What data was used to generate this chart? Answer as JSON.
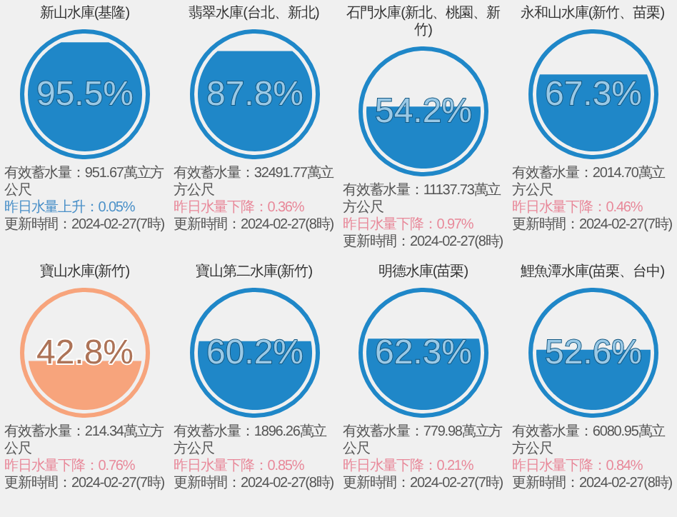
{
  "chart_data": [
    {
      "type": "other",
      "title": "新山水庫(基隆)",
      "series": [
        {
          "values": [
            95.5
          ],
          "color": "#1f87c8",
          "value_labels": [
            "95.5%"
          ]
        }
      ],
      "annotations": [
        "有效蓄水量：951.67萬立方公尺",
        "昨日水量上升：0.05%",
        "更新時間：2024-02-27(7時)"
      ]
    },
    {
      "type": "other",
      "title": "翡翠水庫(台北、新北)",
      "series": [
        {
          "values": [
            87.8
          ],
          "color": "#1f87c8",
          "value_labels": [
            "87.8%"
          ]
        }
      ],
      "annotations": [
        "有效蓄水量：32491.77萬立方公尺",
        "昨日水量下降：0.36%",
        "更新時間：2024-02-27(8時)"
      ]
    },
    {
      "type": "other",
      "title": "石門水庫(新北、桃園、新竹)",
      "series": [
        {
          "values": [
            54.2
          ],
          "color": "#1f87c8",
          "value_labels": [
            "54.2%"
          ]
        }
      ],
      "annotations": [
        "有效蓄水量：11137.73萬立方公尺",
        "昨日水量下降：0.97%",
        "更新時間：2024-02-27(8時)"
      ]
    },
    {
      "type": "other",
      "title": "永和山水庫(新竹、苗栗)",
      "series": [
        {
          "values": [
            67.3
          ],
          "color": "#1f87c8",
          "value_labels": [
            "67.3%"
          ]
        }
      ],
      "annotations": [
        "有效蓄水量：2014.70萬立方公尺",
        "昨日水量下降：0.46%",
        "更新時間：2024-02-27(7時)"
      ]
    },
    {
      "type": "other",
      "title": "寶山水庫(新竹)",
      "series": [
        {
          "values": [
            42.8
          ],
          "color": "#f7a47c",
          "value_labels": [
            "42.8%"
          ]
        }
      ],
      "annotations": [
        "有效蓄水量：214.34萬立方公尺",
        "昨日水量下降：0.76%",
        "更新時間：2024-02-27(7時)"
      ]
    },
    {
      "type": "other",
      "title": "寶山第二水庫(新竹)",
      "series": [
        {
          "values": [
            60.2
          ],
          "color": "#1f87c8",
          "value_labels": [
            "60.2%"
          ]
        }
      ],
      "annotations": [
        "有效蓄水量：1896.26萬立方公尺",
        "昨日水量下降：0.85%",
        "更新時間：2024-02-27(8時)"
      ]
    },
    {
      "type": "other",
      "title": "明德水庫(苗栗)",
      "series": [
        {
          "values": [
            62.3
          ],
          "color": "#1f87c8",
          "value_labels": [
            "62.3%"
          ]
        }
      ],
      "annotations": [
        "有效蓄水量：779.98萬立方公尺",
        "昨日水量下降：0.21%",
        "更新時間：2024-02-27(7時)"
      ]
    },
    {
      "type": "other",
      "title": "鯉魚潭水庫(苗栗、台中)",
      "series": [
        {
          "values": [
            52.6
          ],
          "color": "#1f87c8",
          "value_labels": [
            "52.6%"
          ]
        }
      ],
      "annotations": [
        "有效蓄水量：6080.95萬立方公尺",
        "昨日水量下降：0.84%",
        "更新時間：2024-02-27(8時)"
      ]
    }
  ]
}
